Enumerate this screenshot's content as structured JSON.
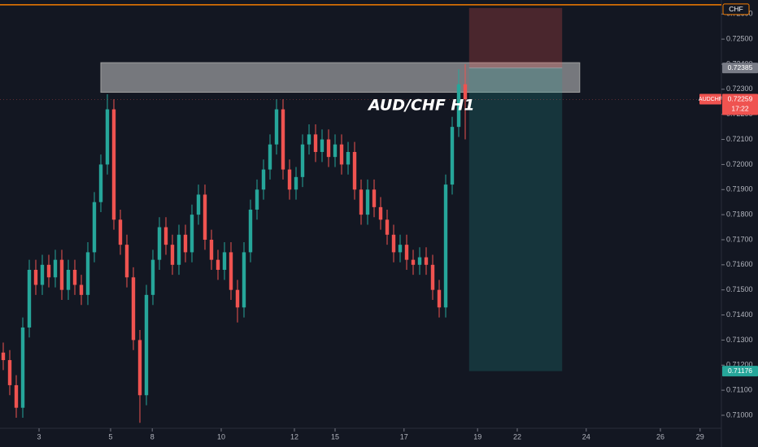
{
  "chart_data": {
    "type": "candlestick",
    "annotation": "AUD/CHF H1",
    "symbol": "AUDCHF",
    "countdown": "17:22",
    "last_price": 0.72259,
    "alert_line": {
      "value": 0.72637,
      "label": "CHF",
      "color": "#f57c00"
    },
    "up_color": "#26a69a",
    "down_color": "#ef5350",
    "grid": false,
    "xlim": [
      -0.5,
      110.375
    ],
    "ylim": [
      0.70948,
      0.72656
    ],
    "xticks": [
      {
        "value": 5.5,
        "label": "3"
      },
      {
        "value": 16.5,
        "label": "5"
      },
      {
        "value": 22.9,
        "label": "8"
      },
      {
        "value": 33.5,
        "label": "10"
      },
      {
        "value": 44.75,
        "label": "12"
      },
      {
        "value": 51,
        "label": "15"
      },
      {
        "value": 61.6,
        "label": "17"
      },
      {
        "value": 72.9,
        "label": "19"
      },
      {
        "value": 79,
        "label": "22"
      },
      {
        "value": 89.6,
        "label": "24"
      },
      {
        "value": 101,
        "label": "26"
      },
      {
        "value": 107.1,
        "label": "29"
      }
    ],
    "yticks": [
      {
        "value": 0.71,
        "label": "0.71000"
      },
      {
        "value": 0.711,
        "label": "0.71100"
      },
      {
        "value": 0.712,
        "label": "0.71200"
      },
      {
        "value": 0.713,
        "label": "0.71300"
      },
      {
        "value": 0.714,
        "label": "0.71400"
      },
      {
        "value": 0.715,
        "label": "0.71500"
      },
      {
        "value": 0.716,
        "label": "0.71600"
      },
      {
        "value": 0.717,
        "label": "0.71700"
      },
      {
        "value": 0.718,
        "label": "0.71800"
      },
      {
        "value": 0.719,
        "label": "0.71900"
      },
      {
        "value": 0.72,
        "label": "0.72000"
      },
      {
        "value": 0.721,
        "label": "0.72100"
      },
      {
        "value": 0.722,
        "label": "0.72200"
      },
      {
        "value": 0.723,
        "label": "0.72300"
      },
      {
        "value": 0.724,
        "label": "0.72400"
      },
      {
        "value": 0.725,
        "label": "0.72500"
      },
      {
        "value": 0.726,
        "label": "0.72600"
      }
    ],
    "resistance_zone": {
      "x": [
        15,
        88.6
      ],
      "y": [
        0.72288,
        0.72406
      ]
    },
    "position": {
      "x": [
        71.6,
        85.9
      ],
      "entry": 0.72385,
      "stop": 0.72624,
      "target": 0.71176
    },
    "x": [
      0,
      1,
      2,
      3,
      4,
      5,
      6,
      7,
      8,
      9,
      10,
      11,
      12,
      13,
      14,
      15,
      16,
      17,
      18,
      19,
      20,
      21,
      22,
      23,
      24,
      25,
      26,
      27,
      28,
      29,
      30,
      31,
      32,
      33,
      34,
      35,
      36,
      37,
      38,
      39,
      40,
      41,
      42,
      43,
      44,
      45,
      46,
      47,
      48,
      49,
      50,
      51,
      52,
      53,
      54,
      55,
      56,
      57,
      58,
      59,
      60,
      61,
      62,
      63,
      64,
      65,
      66,
      67,
      68,
      69,
      70,
      71
    ],
    "open": [
      0.7125,
      0.7122,
      0.7112,
      0.7103,
      0.7135,
      0.7158,
      0.7152,
      0.716,
      0.7155,
      0.7162,
      0.715,
      0.7158,
      0.7152,
      0.7148,
      0.7165,
      0.7185,
      0.72,
      0.7222,
      0.7178,
      0.7168,
      0.7155,
      0.713,
      0.7108,
      0.7148,
      0.7162,
      0.7175,
      0.7168,
      0.716,
      0.7172,
      0.7165,
      0.718,
      0.7188,
      0.717,
      0.7162,
      0.7158,
      0.7165,
      0.715,
      0.7143,
      0.7165,
      0.7182,
      0.719,
      0.7198,
      0.7208,
      0.7222,
      0.7198,
      0.719,
      0.7195,
      0.7208,
      0.7212,
      0.7205,
      0.721,
      0.7203,
      0.7208,
      0.72,
      0.7205,
      0.719,
      0.718,
      0.719,
      0.7183,
      0.7178,
      0.7172,
      0.7165,
      0.7168,
      0.7162,
      0.716,
      0.7163,
      0.716,
      0.715,
      0.7143,
      0.7192,
      0.7215,
      0.7232
    ],
    "high": [
      0.7129,
      0.7126,
      0.7116,
      0.7139,
      0.7162,
      0.7162,
      0.7164,
      0.7164,
      0.7166,
      0.7166,
      0.7162,
      0.7162,
      0.7156,
      0.7169,
      0.7189,
      0.7204,
      0.7228,
      0.7226,
      0.7182,
      0.7172,
      0.7159,
      0.7134,
      0.7152,
      0.7166,
      0.7179,
      0.7179,
      0.7172,
      0.7176,
      0.7176,
      0.7184,
      0.7192,
      0.7192,
      0.7174,
      0.7166,
      0.7169,
      0.7169,
      0.7154,
      0.7169,
      0.7186,
      0.7194,
      0.7202,
      0.7212,
      0.7226,
      0.7226,
      0.7202,
      0.7199,
      0.7212,
      0.7216,
      0.7216,
      0.7214,
      0.7214,
      0.7212,
      0.7212,
      0.7209,
      0.7209,
      0.7194,
      0.7194,
      0.7194,
      0.7187,
      0.7182,
      0.7176,
      0.7172,
      0.7172,
      0.7166,
      0.7167,
      0.7167,
      0.7164,
      0.7154,
      0.7196,
      0.7219,
      0.7238,
      0.724
    ],
    "low": [
      0.7118,
      0.7108,
      0.7099,
      0.7099,
      0.7131,
      0.7148,
      0.7148,
      0.7151,
      0.7151,
      0.7146,
      0.7146,
      0.7148,
      0.7144,
      0.7144,
      0.7161,
      0.7181,
      0.7196,
      0.7174,
      0.7164,
      0.7151,
      0.7126,
      0.7097,
      0.7104,
      0.7144,
      0.7158,
      0.7164,
      0.7156,
      0.7156,
      0.7161,
      0.7161,
      0.7176,
      0.7166,
      0.7158,
      0.7154,
      0.7154,
      0.7146,
      0.7137,
      0.7139,
      0.7161,
      0.7178,
      0.7186,
      0.7194,
      0.7204,
      0.7194,
      0.7186,
      0.7186,
      0.7191,
      0.7204,
      0.7201,
      0.7201,
      0.7199,
      0.7199,
      0.7196,
      0.7196,
      0.7186,
      0.7176,
      0.7176,
      0.7179,
      0.7174,
      0.7168,
      0.7161,
      0.7161,
      0.7158,
      0.7156,
      0.7156,
      0.7156,
      0.7146,
      0.7139,
      0.7139,
      0.7188,
      0.7211,
      0.721
    ],
    "close": [
      0.7122,
      0.7112,
      0.7103,
      0.7135,
      0.7158,
      0.7152,
      0.716,
      0.7155,
      0.7162,
      0.715,
      0.7158,
      0.7152,
      0.7148,
      0.7165,
      0.7185,
      0.72,
      0.7222,
      0.7178,
      0.7168,
      0.7155,
      0.713,
      0.7108,
      0.7148,
      0.7162,
      0.7175,
      0.7168,
      0.716,
      0.7172,
      0.7165,
      0.718,
      0.7188,
      0.717,
      0.7162,
      0.7158,
      0.7165,
      0.715,
      0.7143,
      0.7165,
      0.7182,
      0.719,
      0.7198,
      0.7208,
      0.7222,
      0.7198,
      0.719,
      0.7195,
      0.7208,
      0.7212,
      0.7205,
      0.721,
      0.7203,
      0.7208,
      0.72,
      0.7205,
      0.719,
      0.718,
      0.719,
      0.7183,
      0.7178,
      0.7172,
      0.7165,
      0.7168,
      0.7162,
      0.716,
      0.7163,
      0.716,
      0.715,
      0.7143,
      0.7192,
      0.7215,
      0.7232,
      0.7226
    ]
  }
}
